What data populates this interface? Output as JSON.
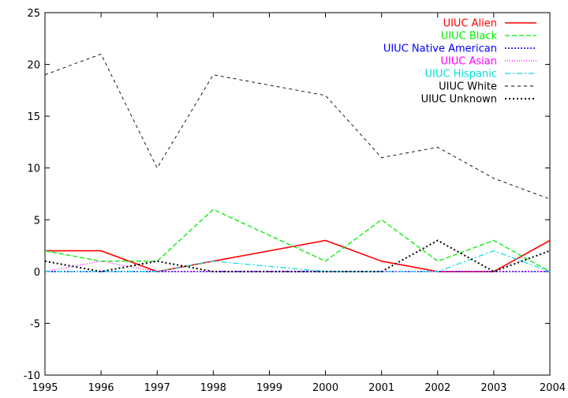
{
  "chart_data": {
    "type": "line",
    "title": "",
    "xlabel": "",
    "ylabel": "",
    "x": [
      1995,
      1996,
      1997,
      1998,
      1999,
      2000,
      2001,
      2002,
      2003,
      2004
    ],
    "xlim": [
      1995,
      2004
    ],
    "ylim": [
      -10,
      25
    ],
    "xticks": [
      "1995",
      "1996",
      "1997",
      "1998",
      "1999",
      "2000",
      "2001",
      "2002",
      "2003",
      "2004"
    ],
    "yticks": [
      "-10",
      "-5",
      "0",
      "5",
      "10",
      "15",
      "20",
      "25"
    ],
    "grid": false,
    "legend_position": "top-right",
    "series": [
      {
        "name": "UIUC Alien",
        "color": "#ff0000",
        "dash": "solid",
        "values": [
          2,
          2,
          0,
          1,
          2,
          3,
          1,
          0,
          0,
          3
        ]
      },
      {
        "name": "UIUC Black",
        "color": "#00ee00",
        "dash": "dashed",
        "values": [
          2,
          1,
          1,
          6,
          3.5,
          1,
          5,
          1,
          3,
          0
        ]
      },
      {
        "name": "UIUC Native American",
        "color": "#0000ff",
        "dash": "dotted",
        "values": [
          0,
          0,
          0,
          0,
          0,
          0,
          0,
          0,
          0,
          0
        ]
      },
      {
        "name": "UIUC Asian",
        "color": "#ff00ff",
        "dash": "fine-dotted",
        "values": [
          0,
          1,
          0,
          0,
          0,
          0,
          0,
          0,
          0,
          0
        ]
      },
      {
        "name": "UIUC Hispanic",
        "color": "#00dddd",
        "dash": "dash-dot",
        "values": [
          0,
          0,
          0,
          1,
          0.5,
          0,
          0,
          0,
          2,
          0
        ]
      },
      {
        "name": "UIUC White",
        "color": "#000000",
        "dash": "fine-dashed",
        "values": [
          19,
          21,
          10,
          19,
          18,
          17,
          11,
          12,
          9,
          7
        ]
      },
      {
        "name": "UIUC Unknown",
        "color": "#000000",
        "dash": "dotted-thick",
        "values": [
          1,
          0,
          1,
          0,
          0,
          0,
          0,
          3,
          0,
          2
        ]
      }
    ]
  }
}
